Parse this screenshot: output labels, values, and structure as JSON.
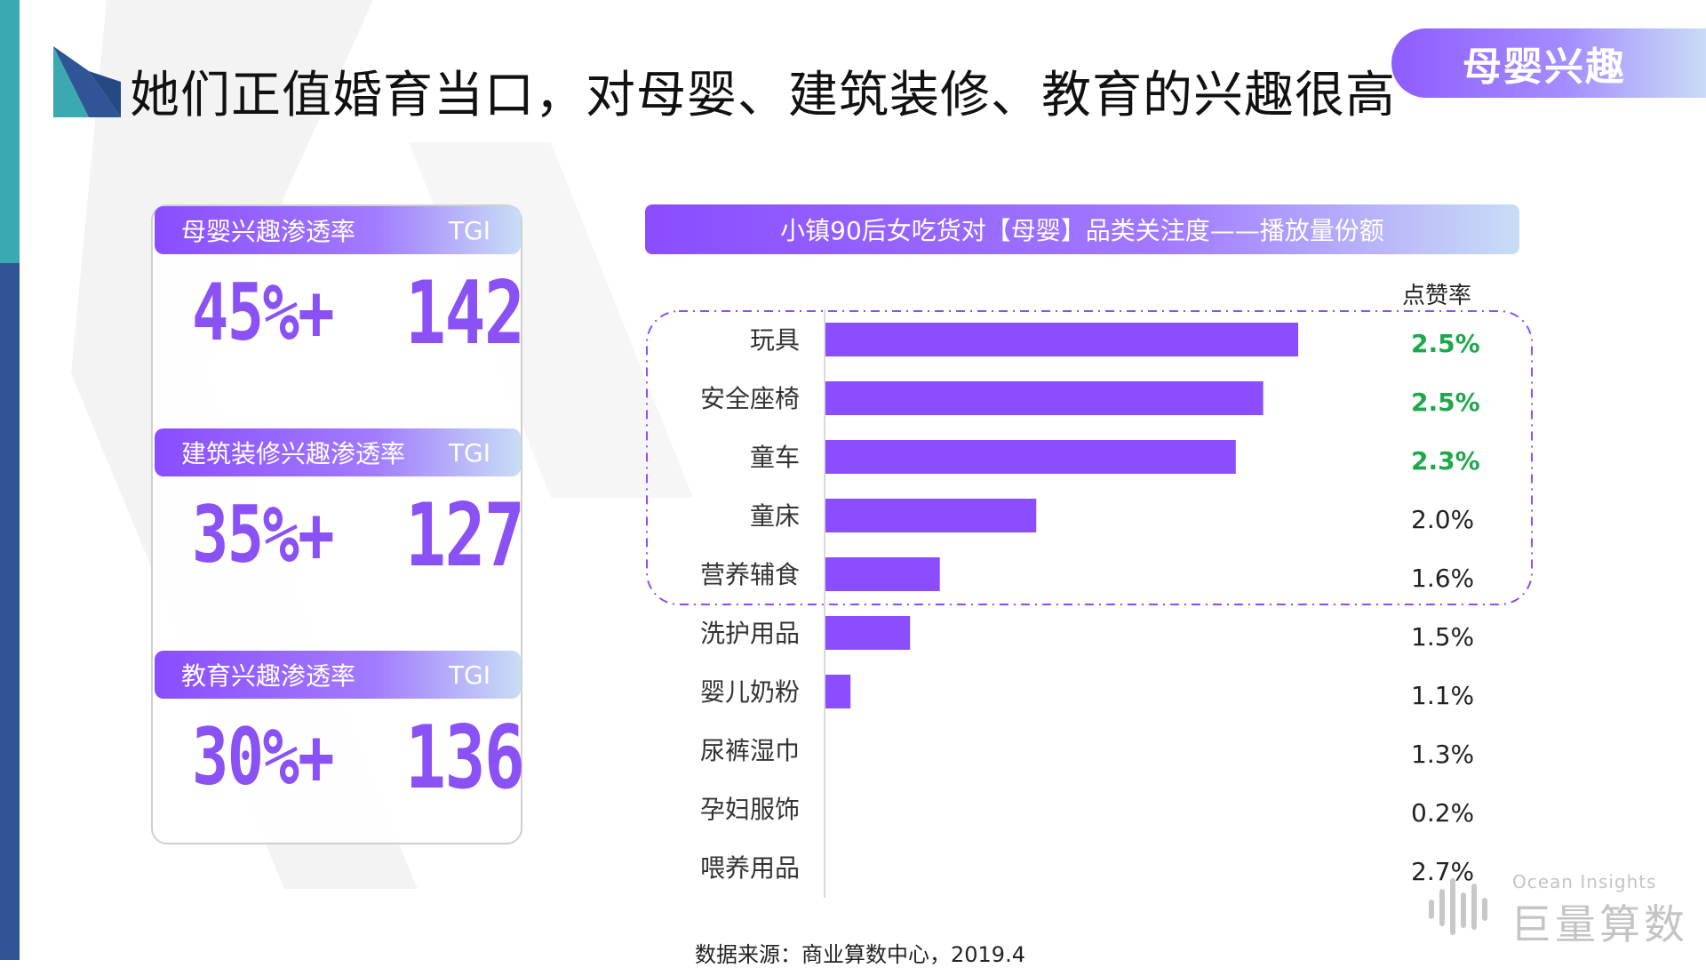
{
  "title": "她们正值婚育当口，对母婴、建筑装修、教育的兴趣很高",
  "tag": "母婴兴趣",
  "metrics": [
    {
      "label": "母婴兴趣渗透率",
      "tgi_label": "TGI",
      "penetration": "45%+",
      "tgi": "142"
    },
    {
      "label": "建筑装修兴趣渗透率",
      "tgi_label": "TGI",
      "penetration": "35%+",
      "tgi": "127"
    },
    {
      "label": "教育兴趣渗透率",
      "tgi_label": "TGI",
      "penetration": "30%+",
      "tgi": "136"
    }
  ],
  "chart_data": {
    "type": "bar",
    "orientation": "horizontal",
    "title": "小镇90后女吃货对【母婴】品类关注度——播放量份额",
    "rate_column_label": "点赞率",
    "categories": [
      "玩具",
      "安全座椅",
      "童车",
      "童床",
      "营养辅食",
      "洗护用品",
      "婴儿奶粉",
      "尿裤湿巾",
      "孕妇服饰",
      "喂养用品"
    ],
    "values": [
      100,
      92.6,
      86.8,
      44.6,
      24.2,
      17.9,
      5.3,
      0,
      0,
      0
    ],
    "like_rates": [
      "2.5%",
      "2.5%",
      "2.3%",
      "2.0%",
      "1.6%",
      "1.5%",
      "1.1%",
      "1.3%",
      "0.2%",
      "2.7%"
    ],
    "highlighted_rates": [
      true,
      true,
      true,
      false,
      false,
      false,
      false,
      false,
      false,
      false
    ],
    "bar_color": "#8a4dff",
    "highlight_color": "#1ea84b",
    "xlim": [
      0,
      100
    ],
    "grid": false,
    "legend": "none",
    "highlight_box_rows": 5
  },
  "source": "数据来源：商业算数中心，2019.4",
  "brand": {
    "sub": "Ocean Insights",
    "name": "巨量算数"
  },
  "colors": {
    "accent": "#8a4dff",
    "stripe_top": "#3aa9b0",
    "stripe_bottom": "#2f5597"
  }
}
